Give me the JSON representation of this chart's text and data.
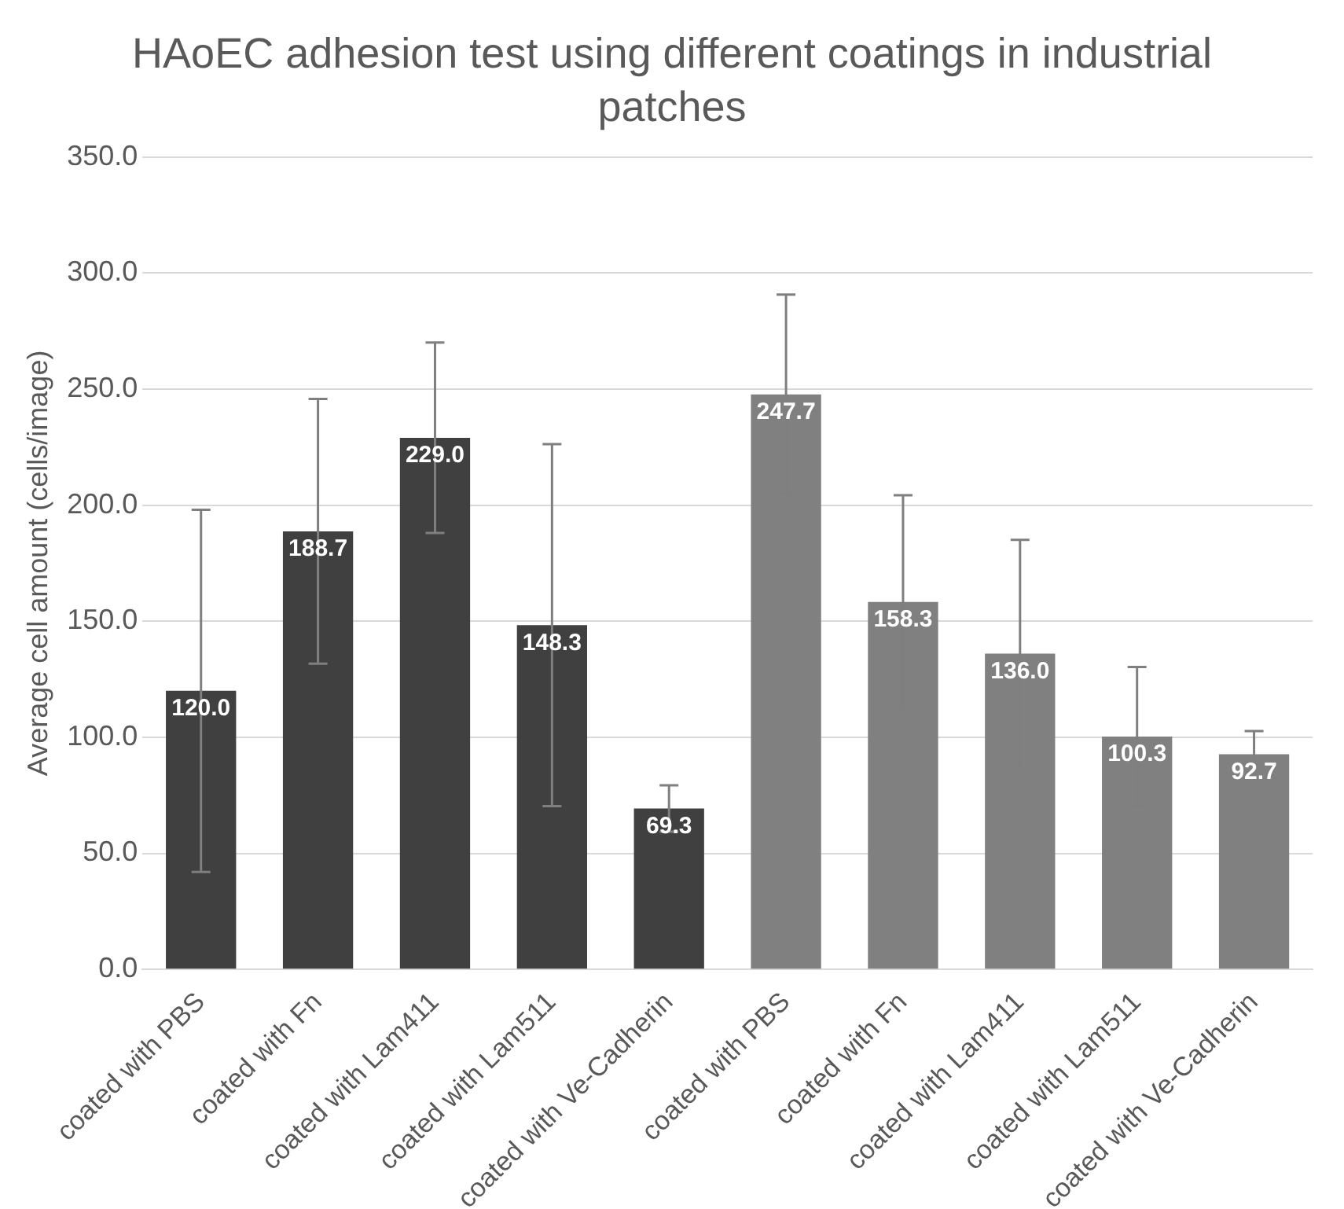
{
  "chart_data": {
    "type": "bar",
    "title": "HAoEC adhesion test using different coatings in industrial patches",
    "ylabel": "Average cell amount (cells/image)",
    "categories": [
      "coated with PBS",
      "coated with Fn",
      "coated with Lam411",
      "coated with Lam511",
      "coated with Ve-Cadherin",
      "coated with PBS",
      "coated with Fn",
      "coated with Lam411",
      "coated with Lam511",
      "coated with Ve-Cadherin"
    ],
    "values": [
      120.0,
      188.7,
      229.0,
      148.3,
      69.3,
      247.7,
      158.3,
      136.0,
      100.3,
      92.7
    ],
    "colors": [
      "#404040",
      "#404040",
      "#404040",
      "#404040",
      "#404040",
      "#808080",
      "#808080",
      "#808080",
      "#808080",
      "#808080"
    ],
    "errors": [
      78,
      57,
      41,
      78,
      10,
      43,
      46,
      49,
      30,
      10
    ],
    "value_labels": [
      "120.0",
      "188.7",
      "229.0",
      "148.3",
      "69.3",
      "247.7",
      "158.3",
      "136.0",
      "100.3",
      "92.7"
    ],
    "ylim": [
      0,
      350
    ],
    "yticks": [
      {
        "value": 0,
        "label": "0.0"
      },
      {
        "value": 50,
        "label": "50.0"
      },
      {
        "value": 100,
        "label": "100.0"
      },
      {
        "value": 150,
        "label": "150.0"
      },
      {
        "value": 200,
        "label": "200.0"
      },
      {
        "value": 250,
        "label": "250.0"
      },
      {
        "value": 300,
        "label": "300.0"
      },
      {
        "value": 350,
        "label": "350.0"
      }
    ],
    "grid": "y",
    "legend": false
  }
}
